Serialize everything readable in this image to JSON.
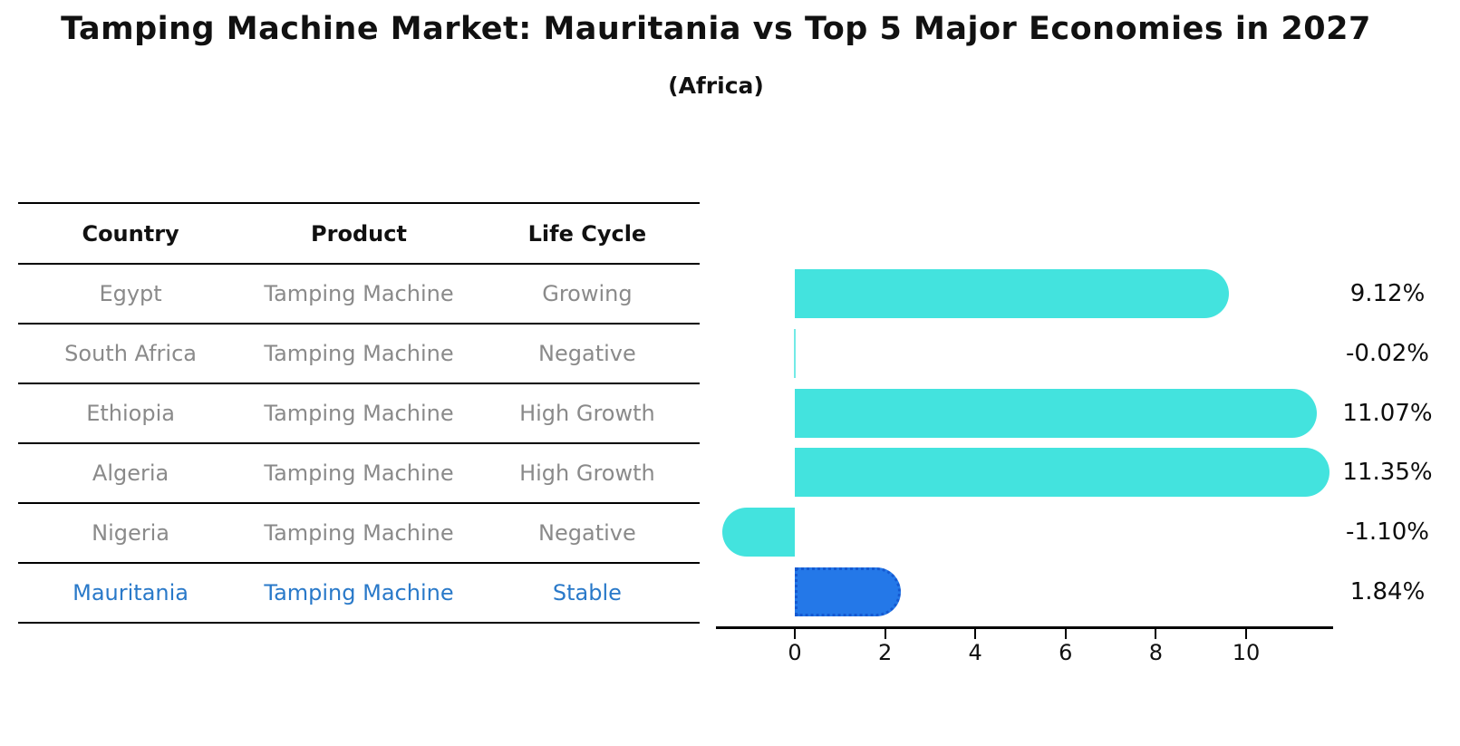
{
  "header": {
    "title": "Tamping Machine Market: Mauritania vs Top 5 Major Economies in 2027",
    "subtitle": "(Africa)"
  },
  "table": {
    "headers": [
      "Country",
      "Product",
      "Life Cycle"
    ],
    "rows": [
      {
        "country": "Egypt",
        "product": "Tamping Machine",
        "life_cycle": "Growing",
        "highlight": false
      },
      {
        "country": "South Africa",
        "product": "Tamping Machine",
        "life_cycle": "Negative",
        "highlight": false
      },
      {
        "country": "Ethiopia",
        "product": "Tamping Machine",
        "life_cycle": "High Growth",
        "highlight": false
      },
      {
        "country": "Algeria",
        "product": "Tamping Machine",
        "life_cycle": "High Growth",
        "highlight": false
      },
      {
        "country": "Nigeria",
        "product": "Tamping Machine",
        "life_cycle": "Negative",
        "highlight": false
      },
      {
        "country": "Mauritania",
        "product": "Tamping Machine",
        "life_cycle": "Stable",
        "highlight": true
      }
    ]
  },
  "chart_data": {
    "type": "bar",
    "orientation": "horizontal",
    "title": "Tamping Machine Market: Mauritania vs Top 5 Major Economies in 2027 (Africa)",
    "categories": [
      "Egypt",
      "South Africa",
      "Ethiopia",
      "Algeria",
      "Nigeria",
      "Mauritania"
    ],
    "values": [
      9.12,
      -0.02,
      11.07,
      11.35,
      -1.1,
      1.84
    ],
    "value_labels": [
      "9.12%",
      "-0.02%",
      "11.07%",
      "11.35%",
      "-1.10%",
      "1.84%"
    ],
    "x_ticks": [
      0,
      2,
      4,
      6,
      8,
      10
    ],
    "x_tick_labels": [
      "0",
      "2",
      "4",
      "6",
      "8",
      "10"
    ],
    "xlim": [
      -1.75,
      11.95
    ],
    "grid": false,
    "legend": "none",
    "highlight_index": 5,
    "bar_color": "#43E3DE",
    "highlight_bar_color": "#2478E8",
    "highlight_border_color": "#1559D1",
    "highlight_text_color": "#2979C9"
  }
}
